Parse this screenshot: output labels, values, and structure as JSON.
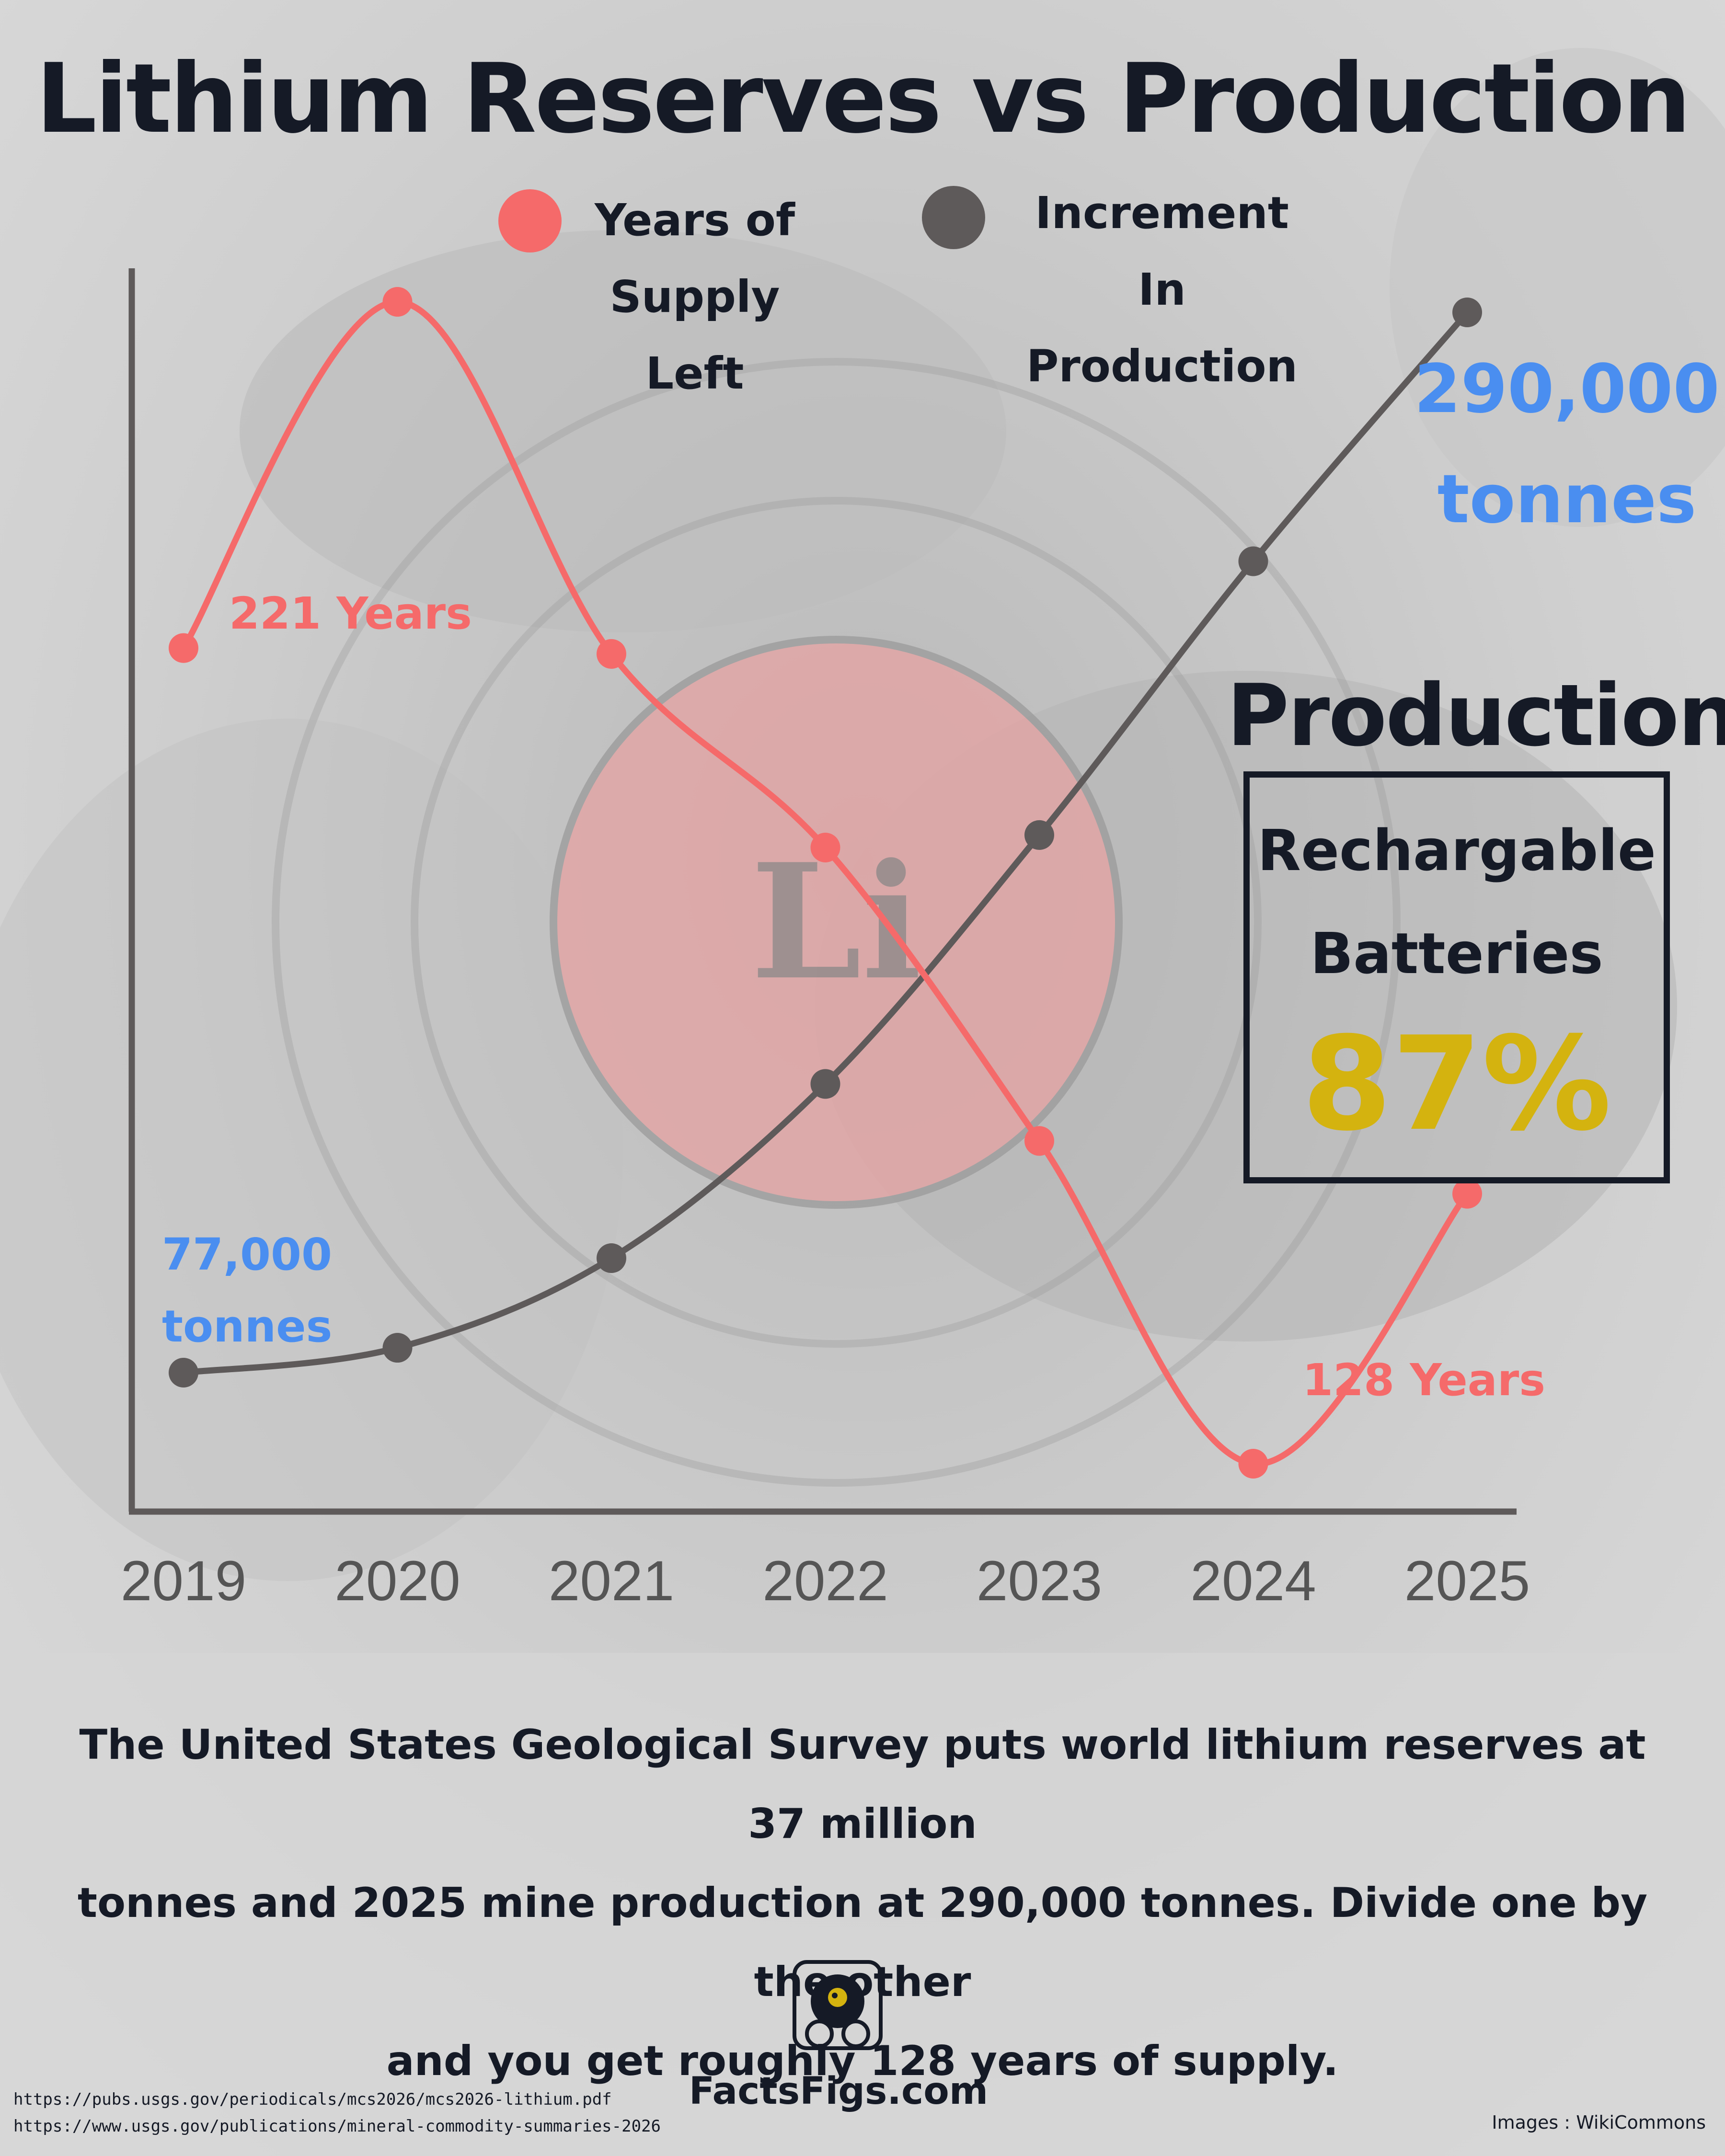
{
  "title": "Lithium Reserves vs Production",
  "legend": [
    {
      "label_line1": "Years of",
      "label_line2": "Supply Left",
      "color": "#f56a6a"
    },
    {
      "label_line1": "Increment In",
      "label_line2": "Production",
      "color": "#5e5a5a"
    }
  ],
  "element_symbol": "Li",
  "colors": {
    "years_line": "#f56a6a",
    "production_line": "#5e5a5a",
    "tonnes_label": "#4a8ef0",
    "years_label": "#f56a6a",
    "highlight": "#d4b30f",
    "dark": "#151a26"
  },
  "chart_data": {
    "type": "line",
    "categories": [
      "2019",
      "2020",
      "2021",
      "2022",
      "2023",
      "2024",
      "2025"
    ],
    "series": [
      {
        "name": "Years of Supply Left",
        "values": [
          221,
          280,
          220,
          187,
          137,
          82,
          128
        ]
      },
      {
        "name": "Increment In Production",
        "values": [
          77000,
          82000,
          100000,
          135000,
          185000,
          240000,
          290000
        ]
      }
    ],
    "annotations": {
      "start_years": "221 Years",
      "end_years": "128 Years",
      "start_tonnes_line1": "77,000",
      "start_tonnes_line2": "tonnes",
      "end_tonnes_line1": "290,000",
      "end_tonnes_line2": "tonnes"
    },
    "title": "Lithium Reserves vs Production",
    "xlabel": "",
    "ylabel": "",
    "grid": false,
    "legend_position": "top"
  },
  "production_panel": {
    "heading": "Production",
    "line1": "Rechargable",
    "line2": "Batteries",
    "percent": "87%"
  },
  "footnote": {
    "line1": "The United States Geological Survey puts world lithium reserves at 37 million",
    "line2": "tonnes and 2025 mine production at 290,000 tonnes. Divide one by the other",
    "line3": "and you get roughly 128 years of supply."
  },
  "brand": "FactsFigs.com",
  "sources": [
    "https://pubs.usgs.gov/periodicals/mcs2026/mcs2026-lithium.pdf",
    "https://www.usgs.gov/publications/mineral-commodity-summaries-2026"
  ],
  "credit": "Images : WikiCommons"
}
